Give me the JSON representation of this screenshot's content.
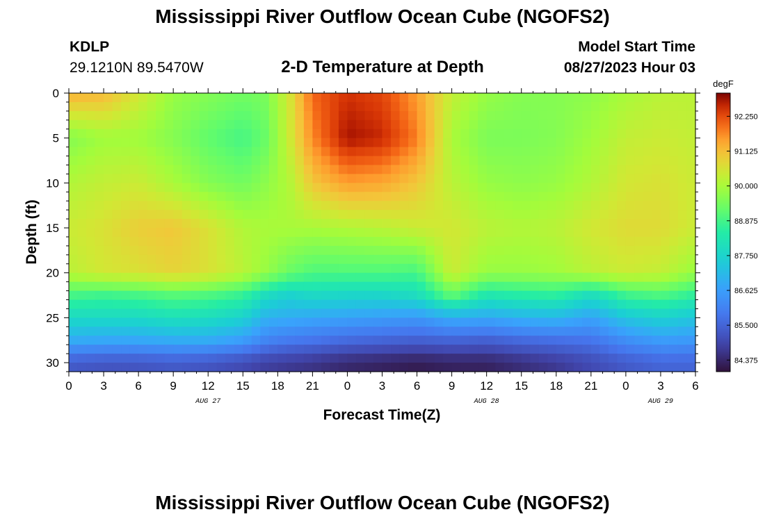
{
  "header": {
    "title": "Mississippi River Outflow Ocean Cube (NGOFS2)",
    "station_id": "KDLP",
    "station_coords": "29.1210N  89.5470W",
    "plot_title": "2-D Temperature at Depth",
    "start_label": "Model Start Time",
    "start_value": "08/27/2023 Hour 03"
  },
  "footer": {
    "title": "Mississippi River Outflow Ocean Cube (NGOFS2)"
  },
  "chart_data": {
    "type": "heatmap",
    "title": "2-D Temperature at Depth",
    "xlabel": "Forecast Time(Z)",
    "ylabel": "Depth (ft)",
    "units": "degF",
    "x_hours_range": [
      0,
      54
    ],
    "x_tick_labels": [
      "0",
      "3",
      "6",
      "9",
      "12",
      "15",
      "18",
      "21",
      "0",
      "3",
      "6",
      "9",
      "12",
      "15",
      "18",
      "21",
      "0",
      "3",
      "6"
    ],
    "date_labels": [
      {
        "label": "AUG 27",
        "hour": 12
      },
      {
        "label": "AUG 28",
        "hour": 36
      },
      {
        "label": "AUG 29",
        "hour": 51
      }
    ],
    "ylim": [
      0,
      31
    ],
    "y_ticks": [
      0,
      5,
      10,
      15,
      20,
      25,
      30
    ],
    "colorbar": {
      "min": 84.0,
      "max": 93.0,
      "tick_values": [
        92.25,
        91.125,
        90.0,
        88.875,
        87.75,
        86.625,
        85.5,
        84.375
      ],
      "tick_labels": [
        "92.250",
        "91.125",
        "90.000",
        "88.875",
        "87.750",
        "86.625",
        "85.500",
        "84.375"
      ]
    },
    "depths": [
      0,
      5,
      10,
      15,
      20,
      22.5,
      25,
      27.5,
      30
    ],
    "times": [
      0,
      3,
      6,
      9,
      12,
      15,
      17,
      19,
      21,
      24,
      27,
      30,
      33,
      36,
      39,
      42,
      45,
      48,
      51,
      54
    ],
    "values": [
      [
        91.3,
        91.2,
        90.5,
        89.8,
        89.6,
        89.4,
        89.5,
        90.5,
        92.0,
        92.5,
        92.3,
        91.5,
        90.3,
        89.8,
        89.6,
        89.6,
        89.7,
        90.0,
        90.2,
        90.2
      ],
      [
        89.6,
        89.9,
        89.9,
        89.6,
        89.2,
        88.9,
        89.3,
        90.4,
        91.7,
        92.8,
        92.6,
        91.8,
        90.0,
        89.5,
        89.5,
        89.6,
        89.9,
        90.3,
        90.4,
        90.3
      ],
      [
        90.1,
        90.3,
        90.4,
        90.0,
        89.6,
        89.4,
        89.7,
        90.1,
        91.0,
        91.5,
        91.4,
        91.0,
        90.2,
        89.8,
        89.7,
        89.8,
        90.1,
        90.5,
        90.6,
        90.4
      ],
      [
        90.4,
        90.6,
        90.9,
        91.0,
        90.6,
        90.1,
        90.0,
        90.0,
        90.0,
        90.1,
        90.2,
        90.4,
        90.5,
        90.2,
        90.1,
        90.2,
        90.5,
        90.7,
        90.7,
        90.4
      ],
      [
        90.2,
        90.5,
        90.6,
        90.8,
        90.6,
        90.2,
        89.8,
        89.3,
        89.0,
        89.0,
        89.0,
        88.9,
        90.4,
        89.8,
        89.8,
        89.9,
        90.2,
        90.4,
        90.3,
        89.8
      ],
      [
        88.9,
        88.8,
        88.9,
        89.1,
        89.0,
        88.7,
        88.0,
        87.7,
        87.9,
        87.8,
        87.8,
        88.0,
        89.2,
        88.3,
        88.5,
        88.6,
        88.0,
        88.8,
        89.0,
        88.6
      ],
      [
        87.9,
        87.9,
        87.9,
        88.1,
        88.0,
        87.7,
        87.0,
        86.9,
        86.8,
        86.7,
        86.6,
        86.5,
        86.9,
        86.8,
        87.0,
        87.1,
        86.7,
        87.4,
        87.7,
        87.4
      ],
      [
        86.9,
        86.8,
        86.8,
        86.9,
        86.9,
        86.6,
        86.1,
        85.9,
        85.8,
        85.6,
        85.5,
        85.4,
        85.5,
        85.4,
        85.6,
        85.7,
        85.8,
        86.3,
        86.6,
        86.5
      ],
      [
        85.3,
        85.2,
        85.2,
        85.3,
        85.2,
        85.0,
        84.8,
        84.7,
        84.6,
        84.4,
        84.3,
        84.2,
        84.3,
        84.3,
        84.5,
        84.7,
        85.0,
        85.3,
        85.5,
        85.5
      ]
    ]
  }
}
